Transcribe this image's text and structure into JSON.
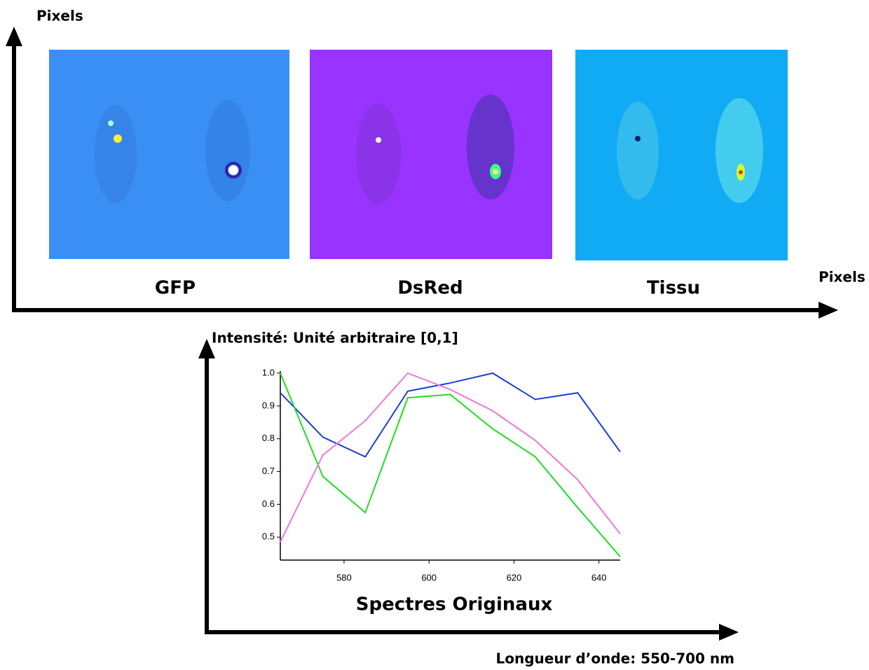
{
  "figure": {
    "y_label": "Pixels",
    "x_label": "Pixels",
    "panels": [
      "GFP",
      "DsRed",
      "Tissu"
    ]
  },
  "chart_data": {
    "type": "line",
    "title": "Spectres Originaux",
    "y_label": "Intensité: Unité arbitraire [0,1]",
    "x_label": "Longueur d’onde: 550-700 nm",
    "x": [
      565,
      575,
      585,
      595,
      605,
      615,
      625,
      635,
      645
    ],
    "series": [
      {
        "color": "#1a3fd6",
        "values": [
          0.94,
          0.805,
          0.745,
          0.945,
          0.97,
          1.0,
          0.92,
          0.94,
          0.76
        ]
      },
      {
        "color": "#22dd22",
        "values": [
          1.0,
          0.685,
          0.575,
          0.925,
          0.935,
          0.83,
          0.745,
          0.59,
          0.44
        ]
      },
      {
        "color": "#ee77dd",
        "values": [
          0.485,
          0.75,
          0.855,
          1.0,
          0.95,
          0.885,
          0.795,
          0.675,
          0.51
        ]
      }
    ],
    "xlim": [
      565,
      645
    ],
    "xticks": [
      580,
      600,
      620,
      640
    ],
    "ylim": [
      0.43,
      1.0
    ],
    "yticks": [
      0.5,
      0.6,
      0.7,
      0.8,
      0.9,
      {
        "value": 1.0,
        "label": "1.0"
      }
    ]
  }
}
